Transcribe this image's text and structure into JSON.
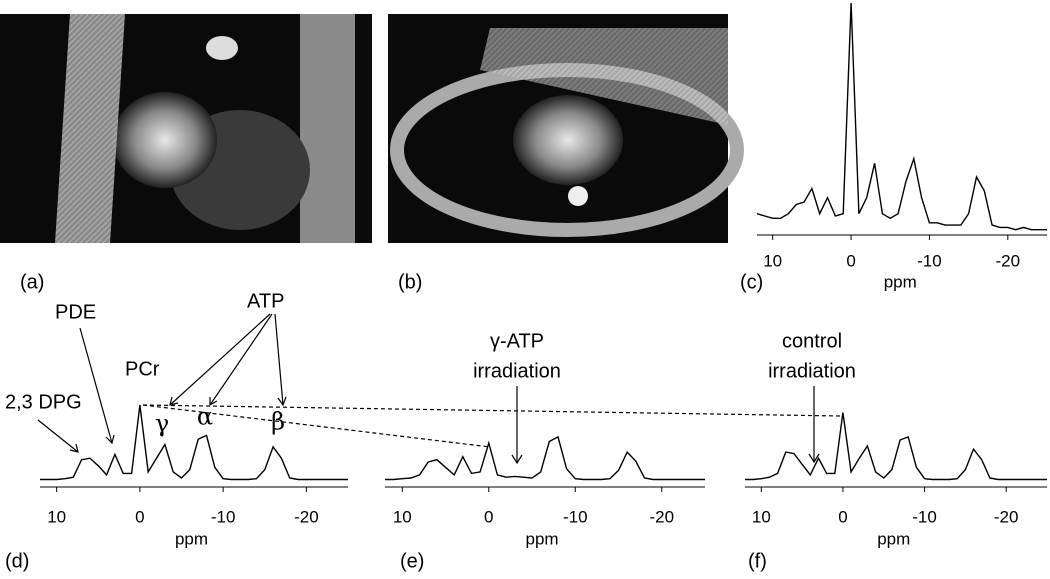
{
  "panels": [
    {
      "label": "(a)"
    },
    {
      "label": "(b)"
    }
  ],
  "chart_data": [
    {
      "type": "line",
      "label": "(c)",
      "xlabel": "ppm",
      "xlim": [
        12,
        -25
      ],
      "xticks": [
        10,
        0,
        -10,
        -20
      ],
      "ylim": [
        0,
        100
      ],
      "x": [
        12,
        11,
        10,
        9,
        8,
        7,
        6,
        5,
        4,
        3,
        2,
        1,
        0,
        -1,
        -2,
        -3,
        -4,
        -5,
        -6,
        -7,
        -8,
        -9,
        -10,
        -11,
        -12,
        -13,
        -14,
        -15,
        -16,
        -17,
        -18,
        -19,
        -20,
        -21,
        -22,
        -23,
        -24,
        -25
      ],
      "series": [
        {
          "color": "#000000",
          "values": [
            8,
            7,
            6,
            6,
            8,
            12,
            13,
            19,
            8,
            15,
            7,
            8,
            100,
            8,
            15,
            30,
            8,
            6,
            8,
            22,
            32,
            15,
            4,
            4,
            3,
            3,
            3,
            8,
            24,
            18,
            3,
            2,
            2,
            1,
            2,
            1,
            1,
            1
          ]
        }
      ],
      "annotations": []
    },
    {
      "type": "line",
      "label": "(d)",
      "xlabel": "ppm",
      "xlim": [
        12,
        -25
      ],
      "xticks": [
        10,
        0,
        -10,
        -20
      ],
      "ylim": [
        0,
        100
      ],
      "x": [
        12,
        11,
        10,
        9,
        8,
        7,
        6,
        5,
        4,
        3,
        2,
        1,
        0,
        -1,
        -2,
        -3,
        -4,
        -5,
        -6,
        -7,
        -8,
        -9,
        -10,
        -11,
        -12,
        -13,
        -14,
        -15,
        -16,
        -17,
        -18,
        -19,
        -20,
        -21,
        -22,
        -23,
        -24,
        -25
      ],
      "series": [
        {
          "color": "#000000",
          "values": [
            2,
            2,
            2,
            3,
            5,
            28,
            30,
            20,
            8,
            35,
            10,
            10,
            100,
            12,
            30,
            48,
            12,
            4,
            15,
            55,
            60,
            18,
            3,
            2,
            2,
            2,
            3,
            15,
            45,
            30,
            4,
            2,
            2,
            2,
            2,
            2,
            2,
            2
          ]
        }
      ],
      "annotations": [
        "2,3 DPG",
        "PDE",
        "PCr",
        "ATP",
        "γ",
        "α",
        "β"
      ]
    },
    {
      "type": "line",
      "label": "(e)",
      "xlabel": "ppm",
      "xlim": [
        12,
        -25
      ],
      "xticks": [
        10,
        0,
        -10,
        -20
      ],
      "ylim": [
        0,
        100
      ],
      "x": [
        12,
        11,
        10,
        9,
        8,
        7,
        6,
        5,
        4,
        3,
        2,
        1,
        0,
        -1,
        -2,
        -3,
        -4,
        -5,
        -6,
        -7,
        -8,
        -9,
        -10,
        -11,
        -12,
        -13,
        -14,
        -15,
        -16,
        -17,
        -18,
        -19,
        -20,
        -21,
        -22,
        -23,
        -24,
        -25
      ],
      "series": [
        {
          "color": "#000000",
          "values": [
            2,
            2,
            3,
            4,
            8,
            25,
            28,
            18,
            8,
            32,
            10,
            12,
            50,
            8,
            5,
            6,
            5,
            4,
            12,
            52,
            58,
            16,
            3,
            2,
            2,
            2,
            3,
            14,
            38,
            26,
            4,
            2,
            2,
            2,
            2,
            2,
            2,
            2
          ]
        }
      ],
      "annotations": [
        "γ-ATP",
        "irradiation"
      ]
    },
    {
      "type": "line",
      "label": "(f)",
      "xlabel": "ppm",
      "xlim": [
        12,
        -25
      ],
      "xticks": [
        10,
        0,
        -10,
        -20
      ],
      "ylim": [
        0,
        100
      ],
      "x": [
        12,
        11,
        10,
        9,
        8,
        7,
        6,
        5,
        4,
        3,
        2,
        1,
        0,
        -1,
        -2,
        -3,
        -4,
        -5,
        -6,
        -7,
        -8,
        -9,
        -10,
        -11,
        -12,
        -13,
        -14,
        -15,
        -16,
        -17,
        -18,
        -19,
        -20,
        -21,
        -22,
        -23,
        -24,
        -25
      ],
      "series": [
        {
          "color": "#000000",
          "values": [
            2,
            2,
            3,
            5,
            10,
            38,
            36,
            22,
            8,
            30,
            10,
            10,
            90,
            12,
            30,
            46,
            12,
            4,
            15,
            54,
            58,
            18,
            3,
            2,
            2,
            2,
            3,
            15,
            42,
            28,
            4,
            2,
            2,
            2,
            2,
            2,
            2,
            2
          ]
        }
      ],
      "annotations": [
        "control",
        "irradiation"
      ]
    }
  ]
}
